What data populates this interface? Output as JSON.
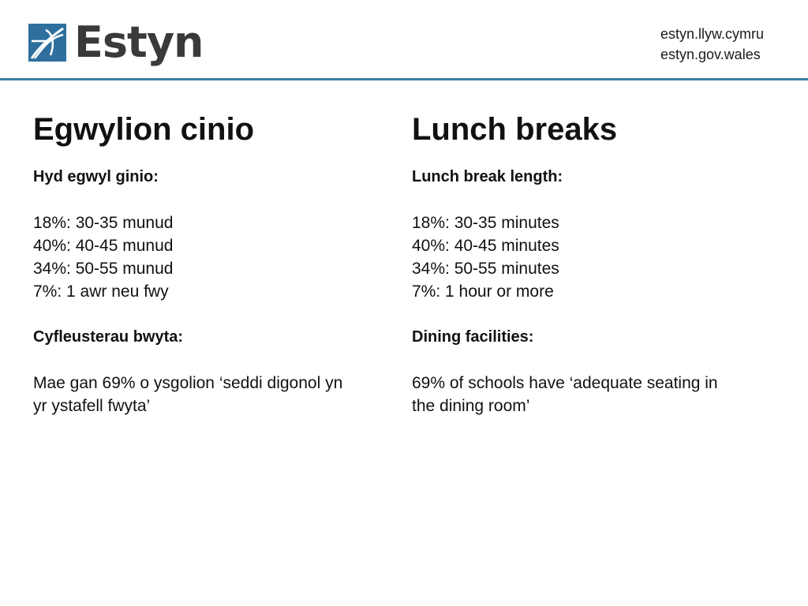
{
  "header": {
    "logo_text": "Estyn",
    "url_welsh": "estyn.llyw.cymru",
    "url_english": "estyn.gov.wales",
    "accent_color": "#3d7ea6"
  },
  "welsh": {
    "title": "Egwylion cinio",
    "length_heading": "Hyd egwyl ginio:",
    "lengths": [
      "18%: 30-35 munud",
      "40%: 40-45 munud",
      "34%: 50-55 munud",
      "7%: 1 awr neu fwy"
    ],
    "facilities_heading": "Cyfleusterau bwyta:",
    "facilities_text_line1": "Mae gan 69% o ysgolion ‘seddi digonol yn",
    "facilities_text_line2": "yr ystafell fwyta’"
  },
  "english": {
    "title": "Lunch breaks",
    "length_heading": "Lunch break length:",
    "lengths": [
      "18%: 30-35 minutes",
      "40%: 40-45 minutes",
      "34%: 50-55 minutes",
      "7%: 1 hour or more"
    ],
    "facilities_heading": "Dining facilities:",
    "facilities_text_line1": "69% of schools have ‘adequate seating in",
    "facilities_text_line2": "the dining room’"
  }
}
